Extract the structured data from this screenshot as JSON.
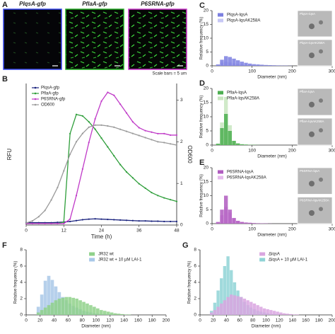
{
  "panel_a": {
    "panel": "A",
    "images": [
      "PlqsA-gfp",
      "PflaA-gfp",
      "P6SRNA-gfp"
    ],
    "scale_note": "Scale bars = 5 um"
  },
  "chart_data": [
    {
      "type": "line",
      "panel": "B",
      "x_label": "Time (h)",
      "y_label": "RFU",
      "y2_label": "OD600",
      "legend": "upper left",
      "x": [
        0,
        2,
        4,
        6,
        8,
        10,
        12,
        14,
        16,
        18,
        20,
        22,
        24,
        26,
        28,
        30,
        32,
        34,
        36,
        38,
        40,
        42,
        44,
        46,
        48
      ],
      "xlim": [
        0,
        48
      ],
      "xticks": [
        0,
        12,
        24,
        36,
        48
      ],
      "ylim": [
        0,
        4800
      ],
      "y2lim": [
        0,
        3.4
      ],
      "y2ticks": [
        0,
        1,
        2,
        3
      ],
      "series": [
        {
          "name": "PlqsA-gfp",
          "color": "#1a237e",
          "values": [
            80,
            80,
            80,
            80,
            80,
            90,
            100,
            120,
            150,
            180,
            200,
            210,
            200,
            190,
            180,
            170,
            160,
            150,
            140,
            140,
            130,
            130,
            120,
            120,
            120
          ]
        },
        {
          "name": "PflaA-gfp",
          "color": "#2e9e3a",
          "values": [
            50,
            50,
            50,
            50,
            50,
            50,
            100,
            3100,
            3750,
            3700,
            3500,
            3250,
            2950,
            2650,
            2350,
            2050,
            1800,
            1600,
            1400,
            1250,
            1100,
            1000,
            920,
            860,
            800
          ]
        },
        {
          "name": "P6SRNA-gfp",
          "color": "#c03bc8",
          "values": [
            50,
            50,
            50,
            50,
            50,
            50,
            50,
            200,
            1000,
            1900,
            2800,
            3600,
            4200,
            4500,
            4400,
            4100,
            3800,
            3500,
            3300,
            3200,
            3150,
            3100,
            3100,
            3050,
            3050
          ]
        },
        {
          "name": "OD600",
          "color": "#9a9a9a",
          "axis": "y2",
          "values": [
            0.05,
            0.1,
            0.2,
            0.35,
            0.6,
            0.9,
            1.3,
            1.7,
            2.0,
            2.2,
            2.35,
            2.4,
            2.4,
            2.38,
            2.35,
            2.3,
            2.25,
            2.2,
            2.15,
            2.1,
            2.05,
            2.0,
            1.98,
            1.95,
            1.92
          ]
        }
      ]
    },
    {
      "type": "histogram",
      "panel": "C",
      "x_label": "Diameter  (nm)",
      "y_label": "Relative frequency (%)",
      "legend": "upper left",
      "insets": [
        "PlqsA-lqsA",
        "PlqsA-lqsAK258A"
      ],
      "bins": [
        0,
        10,
        20,
        30,
        40,
        50,
        60,
        70,
        80,
        90,
        100,
        110,
        120,
        130,
        140,
        150,
        160,
        170,
        180,
        190,
        200
      ],
      "xlim": [
        0,
        300
      ],
      "xticks": [
        0,
        100,
        200,
        300
      ],
      "ylim": [
        0,
        20
      ],
      "yticks": [
        0,
        5,
        10,
        15,
        20
      ],
      "series": [
        {
          "name": "PlqsA-lqsA",
          "color": "#7b7fe0",
          "values": [
            0,
            0.5,
            2.2,
            3.5,
            3.2,
            2.6,
            2.0,
            1.5,
            1.1,
            0.8,
            0.6,
            0.5,
            0.4,
            0.3,
            0.25,
            0.2,
            0.15,
            0.1,
            0.1,
            0.05
          ]
        },
        {
          "name": "PlqsA-lqsAK258A",
          "color": "#c7c8f5",
          "values": [
            0,
            0.3,
            1.2,
            1.5,
            1.2,
            0.9,
            0.7,
            0.5,
            0.4,
            0.3,
            0.2,
            0.2,
            0.1,
            0.1,
            0.1,
            0.05,
            0,
            0,
            0,
            0
          ]
        }
      ]
    },
    {
      "type": "histogram",
      "panel": "D",
      "x_label": "Diameter  (nm)",
      "y_label": "Relative frequency (%)",
      "legend": "upper left",
      "insets": [
        "PflaA-lqsA",
        "PflaA-lqsAK258A"
      ],
      "bins": [
        0,
        10,
        20,
        30,
        40,
        50,
        60,
        70,
        80,
        90,
        100,
        110,
        120,
        130,
        140,
        150,
        160,
        170,
        180,
        190,
        200
      ],
      "xlim": [
        0,
        300
      ],
      "xticks": [
        0,
        100,
        200,
        300
      ],
      "ylim": [
        0,
        20
      ],
      "yticks": [
        0,
        5,
        10,
        15,
        20
      ],
      "series": [
        {
          "name": "PflaA-lqsA",
          "color": "#4caf50",
          "values": [
            0,
            0.5,
            6,
            11,
            5,
            1.5,
            0.6,
            0.3,
            0.2,
            0.1,
            0.1,
            0.05,
            0,
            0,
            0,
            0,
            0,
            0,
            0,
            0
          ]
        },
        {
          "name": "PflaA-lqsAK258A",
          "color": "#c8e6c0",
          "values": [
            0,
            0.4,
            8,
            17,
            7,
            1.5,
            0.5,
            0.2,
            0.1,
            0.05,
            0,
            0,
            0,
            0,
            0,
            0,
            0,
            0,
            0,
            0
          ]
        }
      ]
    },
    {
      "type": "histogram",
      "panel": "E",
      "x_label": "Diameter  (nm)",
      "y_label": "Relative frequency (%)",
      "legend": "upper left",
      "insets": [
        "P6SRNA-lqsA",
        "P6SRNA-lqsAK258A"
      ],
      "bins": [
        0,
        10,
        20,
        30,
        40,
        50,
        60,
        70,
        80,
        90,
        100,
        110,
        120,
        130,
        140,
        150,
        160,
        170,
        180,
        190,
        200
      ],
      "xlim": [
        0,
        300
      ],
      "xticks": [
        0,
        100,
        200,
        300
      ],
      "ylim": [
        0,
        20
      ],
      "yticks": [
        0,
        5,
        10,
        15,
        20
      ],
      "series": [
        {
          "name": "P6SRNA-lqsA",
          "color": "#b05cc0",
          "values": [
            0,
            0.6,
            5,
            10,
            5,
            2,
            1,
            0.6,
            0.4,
            0.3,
            0.2,
            0.15,
            0.1,
            0.1,
            0.05,
            0,
            0,
            0,
            0,
            0
          ]
        },
        {
          "name": "P6SRNA-lqsAK258A",
          "color": "#e5b9ec",
          "values": [
            0,
            0.4,
            3,
            6,
            4,
            2,
            1,
            0.6,
            0.4,
            0.3,
            0.2,
            0.1,
            0.1,
            0.05,
            0,
            0,
            0,
            0,
            0,
            0
          ]
        }
      ]
    },
    {
      "type": "histogram",
      "panel": "F",
      "x_label": "Diameter  (nm)",
      "y_label": "Relative frequency (%)",
      "legend": "upper right",
      "bins": [
        15,
        20,
        25,
        30,
        35,
        40,
        45,
        50,
        55,
        60,
        65,
        70,
        75,
        80,
        85,
        90,
        95,
        100,
        105,
        110,
        115,
        120,
        125,
        130,
        135,
        140,
        145,
        150
      ],
      "xlim": [
        0,
        200
      ],
      "xticks": [
        0,
        20,
        40,
        60,
        80,
        100,
        120,
        140,
        160,
        180,
        200
      ],
      "ylim": [
        0,
        8
      ],
      "yticks": [
        0,
        2,
        4,
        6,
        8
      ],
      "series": [
        {
          "name": "JR32 wt",
          "color": "#8fd18a",
          "values": [
            0.3,
            0.6,
            0.9,
            1.2,
            1.5,
            1.8,
            2.0,
            2.1,
            2.2,
            2.2,
            2.1,
            2.0,
            1.8,
            1.6,
            1.4,
            1.2,
            1.0,
            0.8,
            0.6,
            0.5,
            0.4,
            0.3,
            0.2,
            0.15,
            0.1,
            0.05,
            0.05
          ]
        },
        {
          "name": "JR32 wt + 10 µM LAI-1",
          "color": "#a9c8e8",
          "values": [
            1.0,
            2.5,
            4.2,
            4.8,
            4.3,
            3.5,
            2.8,
            2.2,
            1.8,
            1.4,
            1.1,
            0.9,
            0.7,
            0.5,
            0.4,
            0.3,
            0.2,
            0.15,
            0.1,
            0.1,
            0.05,
            0.05,
            0,
            0,
            0,
            0,
            0
          ]
        }
      ]
    },
    {
      "type": "histogram",
      "panel": "G",
      "x_label": "Diameter  (nm)",
      "y_label": "Relative frequency (%)",
      "legend": "upper right",
      "bins": [
        15,
        20,
        25,
        30,
        35,
        40,
        45,
        50,
        55,
        60,
        65,
        70,
        75,
        80,
        85,
        90,
        95,
        100,
        105,
        110,
        115,
        120,
        125,
        130,
        135,
        140,
        145,
        150
      ],
      "xlim": [
        0,
        200
      ],
      "xticks": [
        0,
        20,
        40,
        60,
        80,
        100,
        120,
        140,
        160,
        180,
        200
      ],
      "ylim": [
        0,
        8
      ],
      "yticks": [
        0,
        2,
        4,
        6,
        8
      ],
      "series": [
        {
          "name": "ΔlqsA",
          "color": "#d9a5e0",
          "values": [
            0.3,
            0.6,
            1.0,
            1.4,
            1.8,
            2.2,
            2.5,
            2.4,
            2.3,
            2.2,
            2.0,
            1.8,
            1.6,
            1.4,
            1.2,
            1.0,
            0.8,
            0.7,
            0.6,
            0.5,
            0.4,
            0.3,
            0.2,
            0.15,
            0.1,
            0.05,
            0.05
          ]
        },
        {
          "name": "ΔlqsA + 10 µM LAI-1",
          "color": "#8fd3d6",
          "values": [
            0.5,
            1.5,
            3.0,
            4.5,
            6.0,
            7.2,
            5.5,
            4.0,
            3.0,
            2.2,
            1.6,
            1.2,
            0.9,
            0.7,
            0.5,
            0.4,
            0.3,
            0.2,
            0.1,
            0.1,
            0.05,
            0,
            0,
            0,
            0,
            0,
            0
          ]
        }
      ]
    }
  ]
}
